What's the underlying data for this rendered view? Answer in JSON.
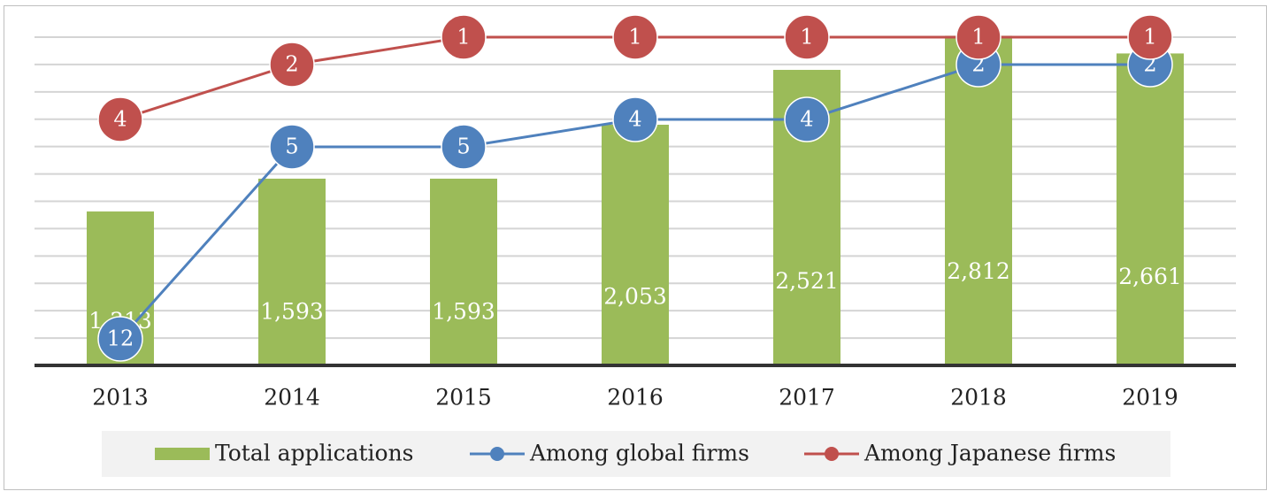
{
  "chart_data": {
    "type": "bar",
    "categories": [
      "2013",
      "2014",
      "2015",
      "2016",
      "2017",
      "2018",
      "2019"
    ],
    "series": [
      {
        "name": "Total applications",
        "kind": "bar",
        "axis": "left",
        "color": "#9bbb59",
        "values": [
          1313,
          1593,
          1593,
          2053,
          2521,
          2812,
          2661
        ]
      },
      {
        "name": "Among global firms",
        "kind": "line",
        "axis": "rank",
        "color": "#4f81bd",
        "values": [
          12,
          5,
          5,
          4,
          4,
          2,
          2
        ]
      },
      {
        "name": "Among Japanese firms",
        "kind": "line",
        "axis": "rank",
        "color": "#c0504d",
        "values": [
          4,
          2,
          1,
          1,
          1,
          1,
          1
        ]
      }
    ],
    "ylim": [
      0,
      2800
    ],
    "rank_axis": {
      "inverted": true,
      "range": [
        1,
        12
      ]
    },
    "grid": true,
    "legend_position": "bottom",
    "title": "",
    "xlabel": "",
    "ylabel": ""
  }
}
